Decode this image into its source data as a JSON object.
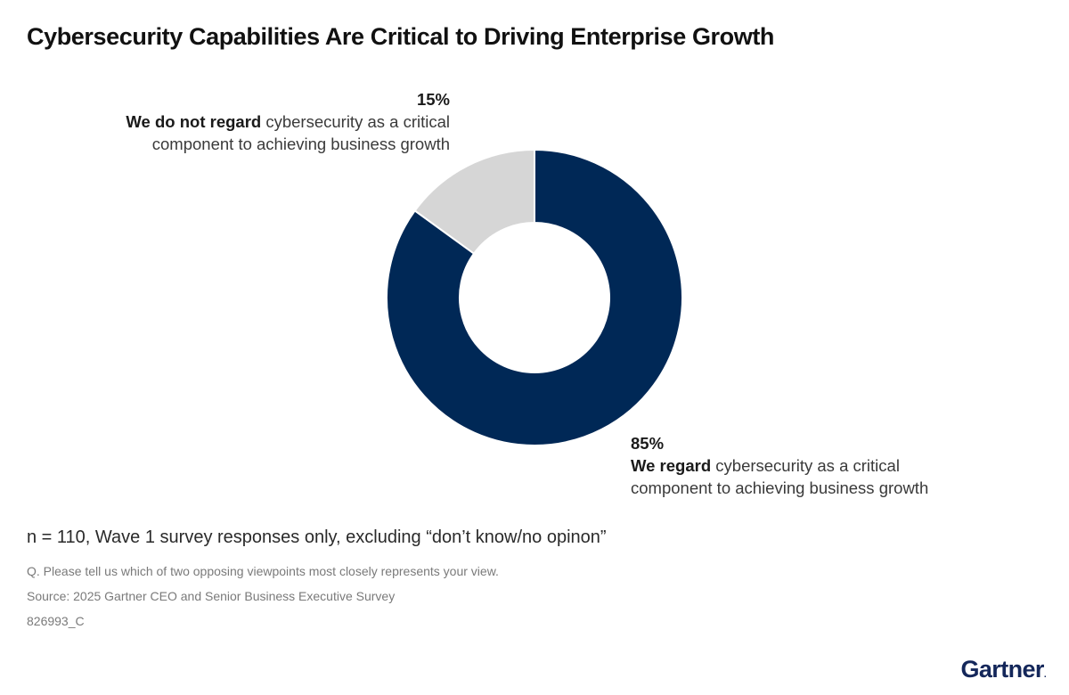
{
  "chart_data": {
    "type": "pie",
    "variant": "donut",
    "title": "Cybersecurity Capabilities Are Critical to Driving Enterprise Growth",
    "start_angle": "12 o'clock, clockwise",
    "slices": [
      {
        "key": "regard",
        "value": 85,
        "pct_label": "85%",
        "bold": "We regard",
        "rest": " cybersecurity as a critical component to achieving business growth",
        "color": "#002856"
      },
      {
        "key": "not_regard",
        "value": 15,
        "pct_label": "15%",
        "bold": "We do not regard",
        "rest": " cybersecurity as a critical component to achieving business growth",
        "color": "#d6d6d6"
      }
    ]
  },
  "labels": {
    "not_regard": {
      "pct": "15%",
      "bold": "We do not regard",
      "line1_rest": " cybersecurity as a critical",
      "line2": "component to achieving business growth"
    },
    "regard": {
      "pct": "85%",
      "bold": "We regard",
      "line1_rest": " cybersecurity as a critical",
      "line2": "component to achieving business growth"
    }
  },
  "note": "n = 110, Wave 1 survey responses only, excluding “don’t know/no opinon”",
  "footnotes": {
    "question": "Q. Please tell us which of two opposing viewpoints most closely represents your view.",
    "source": "Source: 2025 Gartner CEO and Senior Business Executive Survey",
    "id": "826993_C"
  },
  "logo": {
    "text": "Gartner",
    "mark": "."
  }
}
